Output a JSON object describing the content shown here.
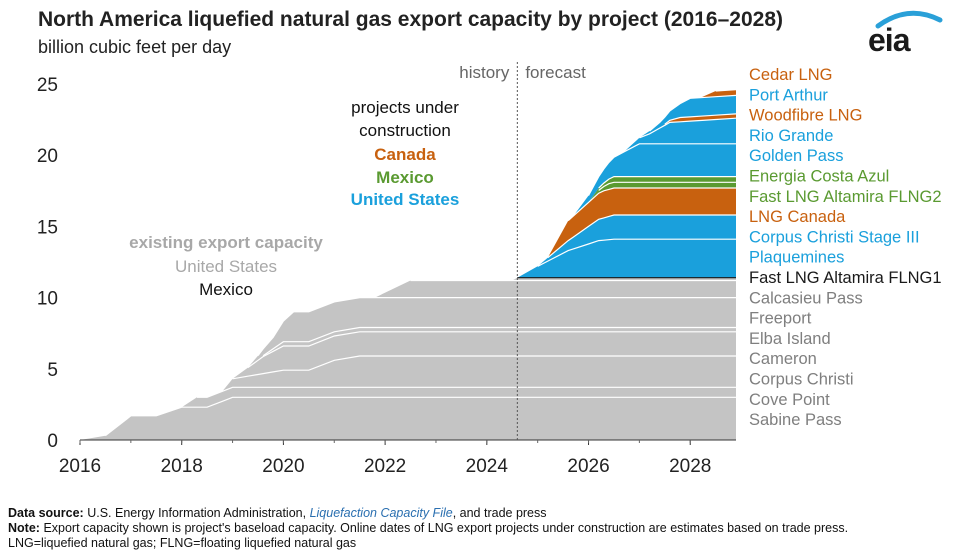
{
  "header": {
    "title": "North America liquefied natural gas export capacity by project (2016–2028)",
    "subtitle": "billion cubic feet per day",
    "logo_text": "eia"
  },
  "colors": {
    "existing_us": "#c4c4c4",
    "existing_mexico": "#1a1a1a",
    "canada": "#c8610f",
    "mexico": "#5a9a31",
    "united_states": "#1aa0dc",
    "divider": "#ffffff",
    "axis_text": "#222222",
    "legend_gray": "#7f7f7f"
  },
  "chart_data": {
    "type": "area",
    "title": "North America liquefied natural gas export capacity by project (2016–2028)",
    "ylabel": "billion cubic feet per day",
    "xlim": [
      2016,
      2028.9
    ],
    "ylim": [
      0,
      25
    ],
    "x_ticks": [
      "2016",
      "2018",
      "2020",
      "2022",
      "2024",
      "2026",
      "2028"
    ],
    "y_ticks": [
      "0",
      "5",
      "10",
      "15",
      "20",
      "25"
    ],
    "history_forecast_divider": 2024.6,
    "period_labels": {
      "history": "history",
      "forecast": "forecast"
    },
    "annotations": {
      "under_construction": "projects under construction",
      "under_construction_lines": [
        "projects under",
        "construction"
      ],
      "canada": "Canada",
      "mexico": "Mexico",
      "united_states": "United States",
      "existing": "existing export capacity",
      "existing_us": "United States",
      "existing_mexico": "Mexico"
    },
    "legend": [
      {
        "name": "Cedar LNG",
        "group": "canada"
      },
      {
        "name": "Port Arthur",
        "group": "united_states"
      },
      {
        "name": "Woodfibre LNG",
        "group": "canada"
      },
      {
        "name": "Rio Grande",
        "group": "united_states"
      },
      {
        "name": "Golden Pass",
        "group": "united_states"
      },
      {
        "name": "Energia Costa Azul",
        "group": "mexico"
      },
      {
        "name": "Fast LNG Altamira FLNG2",
        "group": "mexico"
      },
      {
        "name": "LNG Canada",
        "group": "canada"
      },
      {
        "name": "Corpus Christi Stage III",
        "group": "united_states"
      },
      {
        "name": "Plaquemines",
        "group": "united_states"
      },
      {
        "name": "Fast LNG Altamira FLNG1",
        "group": "existing_mexico"
      },
      {
        "name": "Calcasieu Pass",
        "group": "existing_us"
      },
      {
        "name": "Freeport",
        "group": "existing_us"
      },
      {
        "name": "Elba Island",
        "group": "existing_us"
      },
      {
        "name": "Cameron",
        "group": "existing_us"
      },
      {
        "name": "Corpus Christi",
        "group": "existing_us"
      },
      {
        "name": "Cove Point",
        "group": "existing_us"
      },
      {
        "name": "Sabine Pass",
        "group": "existing_us"
      }
    ],
    "series": [
      {
        "name": "Sabine Pass",
        "group": "existing_us",
        "points": [
          [
            2016,
            0
          ],
          [
            2016.5,
            0.3
          ],
          [
            2017,
            1.7
          ],
          [
            2017.5,
            1.7
          ],
          [
            2018,
            2.3
          ],
          [
            2018.5,
            2.3
          ],
          [
            2019,
            3
          ],
          [
            2024.6,
            3
          ],
          [
            2028.9,
            3
          ]
        ]
      },
      {
        "name": "Cove Point",
        "group": "existing_us",
        "points": [
          [
            2016,
            0
          ],
          [
            2018,
            0
          ],
          [
            2018.3,
            0.7
          ],
          [
            2024.6,
            0.7
          ],
          [
            2028.9,
            0.7
          ]
        ]
      },
      {
        "name": "Corpus Christi",
        "group": "existing_us",
        "points": [
          [
            2016,
            0
          ],
          [
            2018.8,
            0
          ],
          [
            2019,
            0.6
          ],
          [
            2019.5,
            0.9
          ],
          [
            2020,
            1.2
          ],
          [
            2020.5,
            1.2
          ],
          [
            2021,
            1.9
          ],
          [
            2021.5,
            2.2
          ],
          [
            2024.6,
            2.2
          ],
          [
            2028.9,
            2.2
          ]
        ]
      },
      {
        "name": "Cameron",
        "group": "existing_us",
        "points": [
          [
            2016,
            0
          ],
          [
            2019,
            0
          ],
          [
            2019.3,
            0.6
          ],
          [
            2019.6,
            1.2
          ],
          [
            2020,
            1.7
          ],
          [
            2024.6,
            1.7
          ],
          [
            2028.9,
            1.7
          ]
        ]
      },
      {
        "name": "Elba Island",
        "group": "existing_us",
        "points": [
          [
            2016,
            0
          ],
          [
            2019.5,
            0
          ],
          [
            2020,
            0.3
          ],
          [
            2024.6,
            0.3
          ],
          [
            2028.9,
            0.3
          ]
        ]
      },
      {
        "name": "Freeport",
        "group": "existing_us",
        "points": [
          [
            2016,
            0
          ],
          [
            2019.3,
            0
          ],
          [
            2019.8,
            0.8
          ],
          [
            2020.2,
            2.1
          ],
          [
            2024.6,
            2.1
          ],
          [
            2028.9,
            2.1
          ]
        ]
      },
      {
        "name": "Calcasieu Pass",
        "group": "existing_us",
        "points": [
          [
            2016,
            0
          ],
          [
            2021.8,
            0
          ],
          [
            2022.5,
            1.2
          ],
          [
            2024.6,
            1.2
          ],
          [
            2028.9,
            1.2
          ]
        ]
      },
      {
        "name": "Fast LNG Altamira FLNG1",
        "group": "existing_mexico",
        "points": [
          [
            2016,
            0
          ],
          [
            2024.5,
            0
          ],
          [
            2024.6,
            0.2
          ],
          [
            2028.9,
            0.2
          ]
        ]
      },
      {
        "name": "Plaquemines",
        "group": "united_states",
        "points": [
          [
            2016,
            0
          ],
          [
            2024.6,
            0
          ],
          [
            2025,
            0.8
          ],
          [
            2025.6,
            1.9
          ],
          [
            2026.2,
            2.6
          ],
          [
            2026.5,
            2.7
          ],
          [
            2028.9,
            2.7
          ]
        ]
      },
      {
        "name": "Corpus Christi Stage III",
        "group": "united_states",
        "points": [
          [
            2016,
            0
          ],
          [
            2025,
            0
          ],
          [
            2025.6,
            0.7
          ],
          [
            2026.2,
            1.5
          ],
          [
            2026.5,
            1.7
          ],
          [
            2028.9,
            1.7
          ]
        ]
      },
      {
        "name": "LNG Canada",
        "group": "canada",
        "points": [
          [
            2016,
            0
          ],
          [
            2025.2,
            0
          ],
          [
            2025.6,
            1.4
          ],
          [
            2026.3,
            1.9
          ],
          [
            2028.9,
            1.9
          ]
        ]
      },
      {
        "name": "Fast LNG Altamira FLNG2",
        "group": "mexico",
        "points": [
          [
            2016,
            0
          ],
          [
            2026,
            0
          ],
          [
            2026.4,
            0.4
          ],
          [
            2028.9,
            0.4
          ]
        ]
      },
      {
        "name": "Energia Costa Azul",
        "group": "mexico",
        "points": [
          [
            2016,
            0
          ],
          [
            2026,
            0
          ],
          [
            2026.5,
            0.4
          ],
          [
            2028.9,
            0.4
          ]
        ]
      },
      {
        "name": "Golden Pass",
        "group": "united_states",
        "points": [
          [
            2016,
            0
          ],
          [
            2025.7,
            0
          ],
          [
            2026.2,
            0.8
          ],
          [
            2027,
            2.3
          ],
          [
            2028.9,
            2.3
          ]
        ]
      },
      {
        "name": "Rio Grande",
        "group": "united_states",
        "points": [
          [
            2016,
            0
          ],
          [
            2026.7,
            0
          ],
          [
            2027.2,
            0.7
          ],
          [
            2027.6,
            1.5
          ],
          [
            2028.9,
            1.8
          ]
        ]
      },
      {
        "name": "Woodfibre LNG",
        "group": "canada",
        "points": [
          [
            2016,
            0
          ],
          [
            2027.4,
            0
          ],
          [
            2027.8,
            0.3
          ],
          [
            2028.9,
            0.3
          ]
        ]
      },
      {
        "name": "Port Arthur",
        "group": "united_states",
        "points": [
          [
            2016,
            0
          ],
          [
            2027,
            0
          ],
          [
            2027.5,
            0.5
          ],
          [
            2028,
            1.3
          ],
          [
            2028.9,
            1.3
          ]
        ]
      },
      {
        "name": "Cedar LNG",
        "group": "canada",
        "points": [
          [
            2016,
            0
          ],
          [
            2028.2,
            0
          ],
          [
            2028.5,
            0.4
          ],
          [
            2028.9,
            0.4
          ]
        ]
      }
    ]
  },
  "footer": {
    "source_label": "Data source:",
    "source_text": "U.S. Energy Information Administration,",
    "source_link": "Liquefaction Capacity File",
    "source_tail": ", and trade press",
    "note_label": "Note:",
    "note_text": "Export capacity shown is project's baseload capacity. Online dates of LNG export projects under construction are estimates based on trade press.",
    "abbrev_text": "LNG=liquefied natural gas; FLNG=floating liquefied natural gas"
  }
}
